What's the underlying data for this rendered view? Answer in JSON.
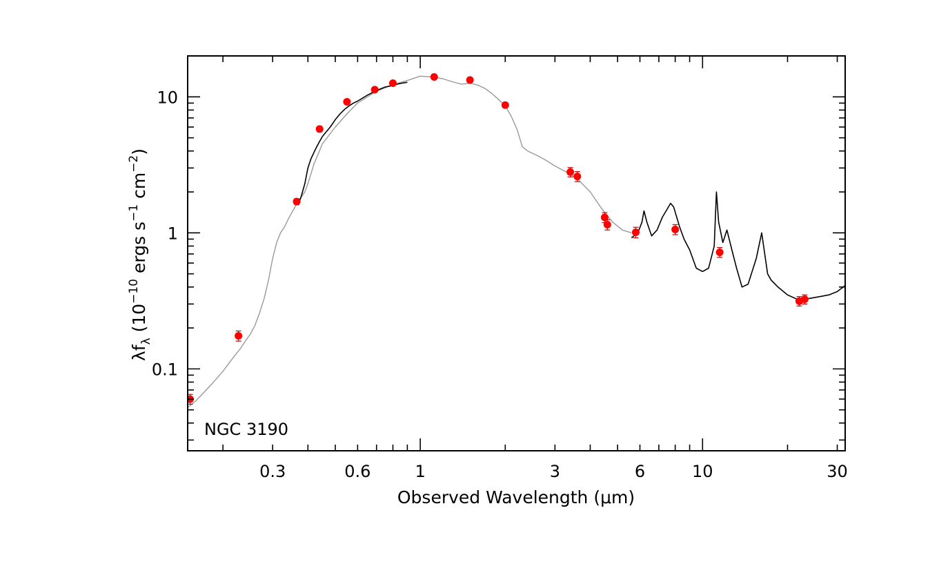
{
  "chart_data": {
    "type": "line",
    "title": "",
    "annotation": "NGC 3190",
    "xlabel": "Observed Wavelength (μm)",
    "ylabel": {
      "prefix": "λf",
      "prefix_sub": "λ",
      "open": " (10",
      "exp1": "−10",
      "units": " ergs s",
      "exp2": "−1",
      "units2": " cm",
      "exp3": "−2",
      "close": ")"
    },
    "xscale": "log",
    "yscale": "log",
    "xlim": [
      0.15,
      32
    ],
    "ylim": [
      0.025,
      20
    ],
    "xticks": [
      {
        "value": 0.3,
        "label": "0.3"
      },
      {
        "value": 0.6,
        "label": "0.6"
      },
      {
        "value": 1,
        "label": "1"
      },
      {
        "value": 3,
        "label": "3"
      },
      {
        "value": 6,
        "label": "6"
      },
      {
        "value": 10,
        "label": "10"
      },
      {
        "value": 30,
        "label": "30"
      }
    ],
    "yticks": [
      {
        "value": 0.1,
        "label": "0.1"
      },
      {
        "value": 1,
        "label": "1"
      },
      {
        "value": 10,
        "label": "10"
      }
    ],
    "colors": {
      "model": "#999999",
      "spectrum": "#000000",
      "photometry": "#ff0000",
      "errorbar": "#cc0000"
    },
    "series": [
      {
        "role": "model template",
        "color": "#999999",
        "x": [
          0.15,
          0.16,
          0.17,
          0.18,
          0.19,
          0.2,
          0.21,
          0.22,
          0.23,
          0.24,
          0.25,
          0.26,
          0.27,
          0.28,
          0.29,
          0.3,
          0.31,
          0.32,
          0.33,
          0.34,
          0.35,
          0.36,
          0.37,
          0.38,
          0.39,
          0.4,
          0.42,
          0.45,
          0.5,
          0.55,
          0.6,
          0.7,
          0.8,
          0.9,
          1.0,
          1.1,
          1.2,
          1.3,
          1.4,
          1.5,
          1.6,
          1.7,
          1.8,
          1.9,
          2.0,
          2.1,
          2.2,
          2.3,
          2.4,
          2.6,
          2.8,
          3.0,
          3.3,
          3.6,
          4.0,
          4.4,
          4.8,
          5.2,
          5.6
        ],
        "y": [
          0.052,
          0.058,
          0.066,
          0.075,
          0.085,
          0.096,
          0.11,
          0.125,
          0.14,
          0.16,
          0.18,
          0.21,
          0.26,
          0.33,
          0.45,
          0.65,
          0.85,
          1.0,
          1.1,
          1.25,
          1.4,
          1.55,
          1.7,
          1.85,
          2.0,
          2.3,
          3.2,
          4.5,
          6.0,
          7.5,
          9.0,
          11.0,
          12.3,
          13.2,
          14.2,
          14.0,
          13.6,
          12.9,
          12.4,
          12.6,
          12.2,
          11.5,
          10.5,
          9.5,
          8.6,
          7.2,
          5.8,
          4.3,
          4.0,
          3.7,
          3.4,
          3.1,
          2.8,
          2.5,
          2.0,
          1.5,
          1.2,
          1.05,
          1.0
        ]
      },
      {
        "role": "optical spectrum",
        "color": "#000000",
        "x": [
          0.37,
          0.38,
          0.39,
          0.4,
          0.41,
          0.42,
          0.43,
          0.44,
          0.45,
          0.46,
          0.47,
          0.48,
          0.5,
          0.52,
          0.54,
          0.56,
          0.58,
          0.6,
          0.62,
          0.65,
          0.68,
          0.7,
          0.72,
          0.75,
          0.78,
          0.8,
          0.83,
          0.86,
          0.9
        ],
        "y": [
          1.6,
          1.9,
          2.3,
          3.0,
          3.5,
          3.9,
          4.3,
          4.7,
          5.1,
          5.4,
          5.7,
          6.0,
          6.8,
          7.5,
          8.1,
          8.6,
          9.0,
          9.3,
          9.7,
          10.3,
          10.8,
          11.1,
          11.4,
          11.8,
          12.0,
          12.2,
          12.4,
          12.6,
          12.8
        ]
      },
      {
        "role": "mid-infrared spectrum",
        "color": "#000000",
        "x": [
          5.6,
          5.9,
          6.1,
          6.2,
          6.35,
          6.6,
          6.9,
          7.2,
          7.5,
          7.7,
          7.9,
          8.1,
          8.3,
          8.6,
          9.0,
          9.5,
          10.0,
          10.5,
          11.0,
          11.2,
          11.4,
          11.8,
          12.2,
          12.7,
          13.2,
          13.8,
          14.5,
          15.5,
          16.2,
          17.0,
          17.5,
          18.5,
          20.0,
          22.0,
          24.0,
          26.0,
          28.0,
          30.0,
          32.0
        ],
        "y": [
          0.92,
          1.0,
          1.2,
          1.45,
          1.2,
          0.95,
          1.05,
          1.3,
          1.5,
          1.65,
          1.55,
          1.3,
          1.1,
          0.9,
          0.75,
          0.55,
          0.52,
          0.55,
          0.8,
          2.0,
          1.2,
          0.85,
          1.05,
          0.75,
          0.55,
          0.4,
          0.42,
          0.65,
          1.0,
          0.5,
          0.45,
          0.4,
          0.35,
          0.32,
          0.33,
          0.34,
          0.35,
          0.37,
          0.41
        ]
      },
      {
        "role": "photometry",
        "color": "#ff0000",
        "type": "scatter",
        "x": [
          0.153,
          0.227,
          0.365,
          0.44,
          0.55,
          0.69,
          0.8,
          1.12,
          1.5,
          2.0,
          3.4,
          3.6,
          4.5,
          4.6,
          5.8,
          8.0,
          11.5,
          22.0,
          23.0
        ],
        "y": [
          0.06,
          0.175,
          1.7,
          5.8,
          9.2,
          11.3,
          12.6,
          14.0,
          13.3,
          8.7,
          2.8,
          2.6,
          1.3,
          1.15,
          1.01,
          1.06,
          0.72,
          0.315,
          0.325
        ],
        "yerr": [
          0.005,
          0.015,
          0.08,
          0.25,
          0.35,
          0.4,
          0.45,
          0.5,
          0.5,
          0.35,
          0.22,
          0.22,
          0.11,
          0.1,
          0.09,
          0.09,
          0.06,
          0.025,
          0.025
        ]
      }
    ]
  }
}
